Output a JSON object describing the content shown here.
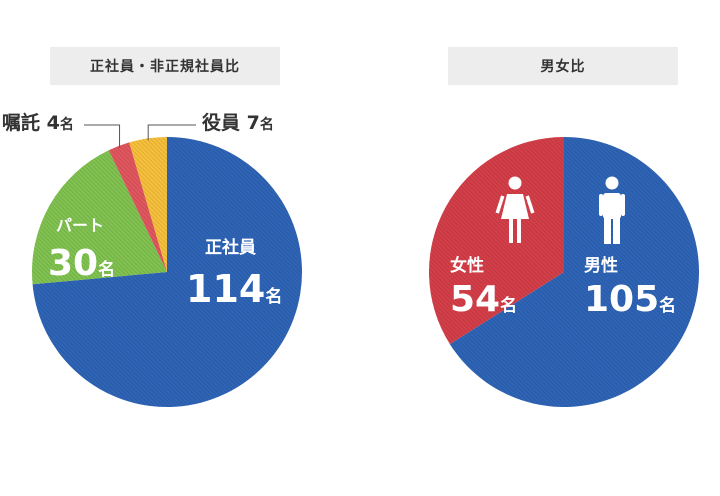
{
  "chart_data": [
    {
      "type": "pie",
      "title": "正社員・非正規社員比",
      "unit": "名",
      "slices": [
        {
          "label": "正社員",
          "value": 114,
          "color": "#2f65b8"
        },
        {
          "label": "パート",
          "value": 30,
          "color": "#82c451"
        },
        {
          "label": "嘱託",
          "value": 4,
          "color": "#e3575f"
        },
        {
          "label": "役員",
          "value": 7,
          "color": "#f9c23c"
        }
      ]
    },
    {
      "type": "pie",
      "title": "男女比",
      "unit": "名",
      "slices": [
        {
          "label": "男性",
          "value": 105,
          "color": "#2f65b8",
          "icon": "male-icon"
        },
        {
          "label": "女性",
          "value": 54,
          "color": "#d63f49",
          "icon": "female-icon"
        }
      ]
    }
  ]
}
